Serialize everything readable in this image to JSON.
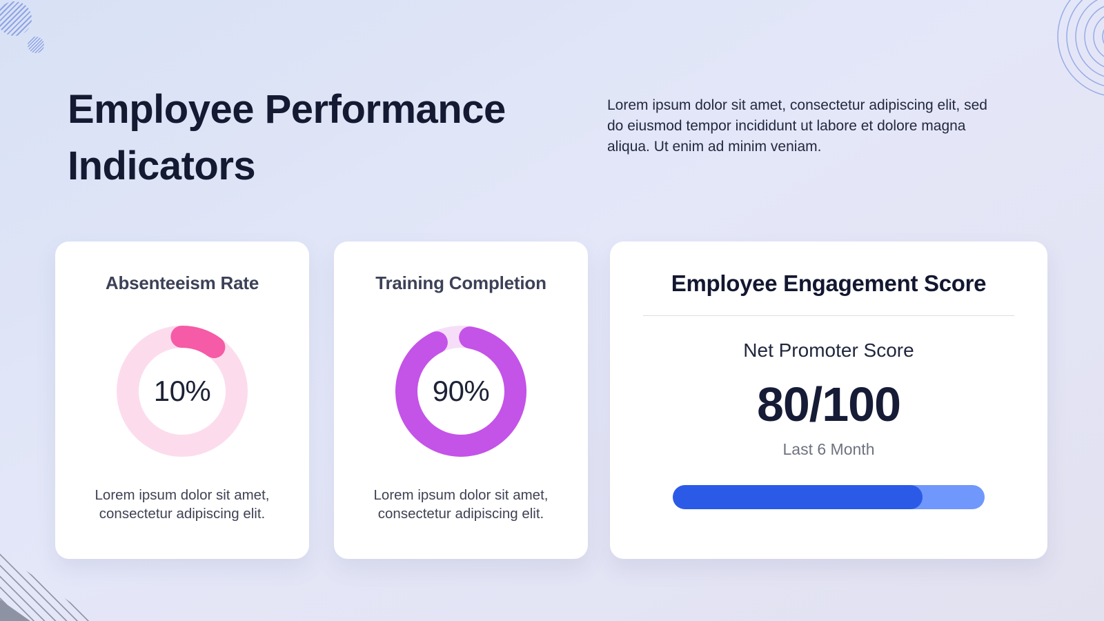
{
  "header": {
    "title": "Employee Performance Indicators",
    "description": "Lorem ipsum dolor sit amet, consectetur adipiscing elit, sed do eiusmod tempor incididunt ut labore et dolore magna aliqua. Ut enim ad minim veniam."
  },
  "chart_data": [
    {
      "type": "donut",
      "title": "Absenteeism Rate",
      "value": 10,
      "max": 100,
      "center_label": "10%",
      "caption": "Lorem ipsum dolor sit amet, consectetur adipiscing elit.",
      "arc_color": "#f55ba6",
      "track_color": "#fcdcec"
    },
    {
      "type": "donut",
      "title": "Training Completion",
      "value": 90,
      "max": 100,
      "center_label": "90%",
      "caption": "Lorem ipsum dolor sit amet, consectetur adipiscing elit.",
      "arc_color": "#c453e8",
      "track_color": "#f6def9"
    },
    {
      "type": "progress",
      "title": "Employee Engagement Score",
      "subtitle": "Net Promoter Score",
      "score_label": "80/100",
      "value": 80,
      "max": 100,
      "period": "Last 6 Month",
      "fill_color": "#2b5be6",
      "track_color": "#7097fb"
    }
  ]
}
